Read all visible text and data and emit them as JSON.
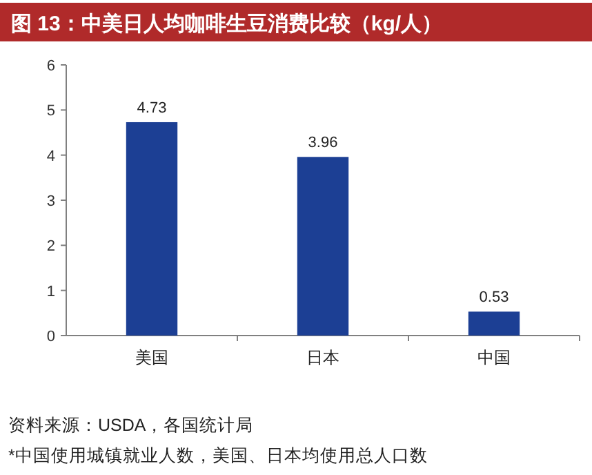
{
  "chart_data": {
    "type": "bar",
    "title": "图 13：中美日人均咖啡生豆消费比较（kg/人）",
    "categories": [
      "美国",
      "日本",
      "中国"
    ],
    "values": [
      4.73,
      3.96,
      0.53
    ],
    "color": "#1c3f94",
    "ylim": [
      0,
      6
    ],
    "yticks": [
      0,
      1,
      2,
      3,
      4,
      5,
      6
    ],
    "data_labels": true,
    "grid": false,
    "annotations": [
      "资料来源：USDA，各国统计局",
      "*中国使用城镇就业人数，美国、日本均使用总人口数"
    ]
  }
}
